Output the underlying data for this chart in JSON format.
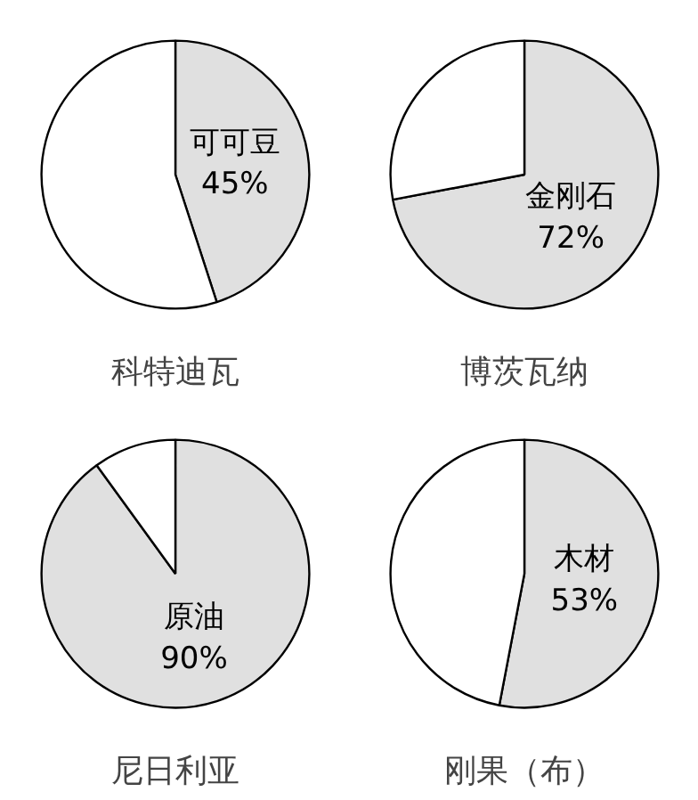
{
  "chart_data": [
    {
      "type": "pie",
      "title": "科特迪瓦",
      "categories": [
        "可可豆",
        null
      ],
      "values": [
        45,
        55
      ],
      "colors": [
        "#e0e0e0",
        "#ffffff"
      ],
      "value_labels": [
        "45%",
        null
      ]
    },
    {
      "type": "pie",
      "title": "博茨瓦纳",
      "categories": [
        "金刚石",
        null
      ],
      "values": [
        72,
        28
      ],
      "colors": [
        "#e0e0e0",
        "#ffffff"
      ],
      "value_labels": [
        "72%",
        null
      ]
    },
    {
      "type": "pie",
      "title": "尼日利亚",
      "categories": [
        "原油",
        null
      ],
      "values": [
        90,
        10
      ],
      "colors": [
        "#e0e0e0",
        "#ffffff"
      ],
      "value_labels": [
        "90%",
        null
      ]
    },
    {
      "type": "pie",
      "title": "刚果（布）",
      "categories": [
        "木材",
        null
      ],
      "values": [
        53,
        47
      ],
      "colors": [
        "#e0e0e0",
        "#ffffff"
      ],
      "value_labels": [
        "53%",
        null
      ]
    }
  ]
}
